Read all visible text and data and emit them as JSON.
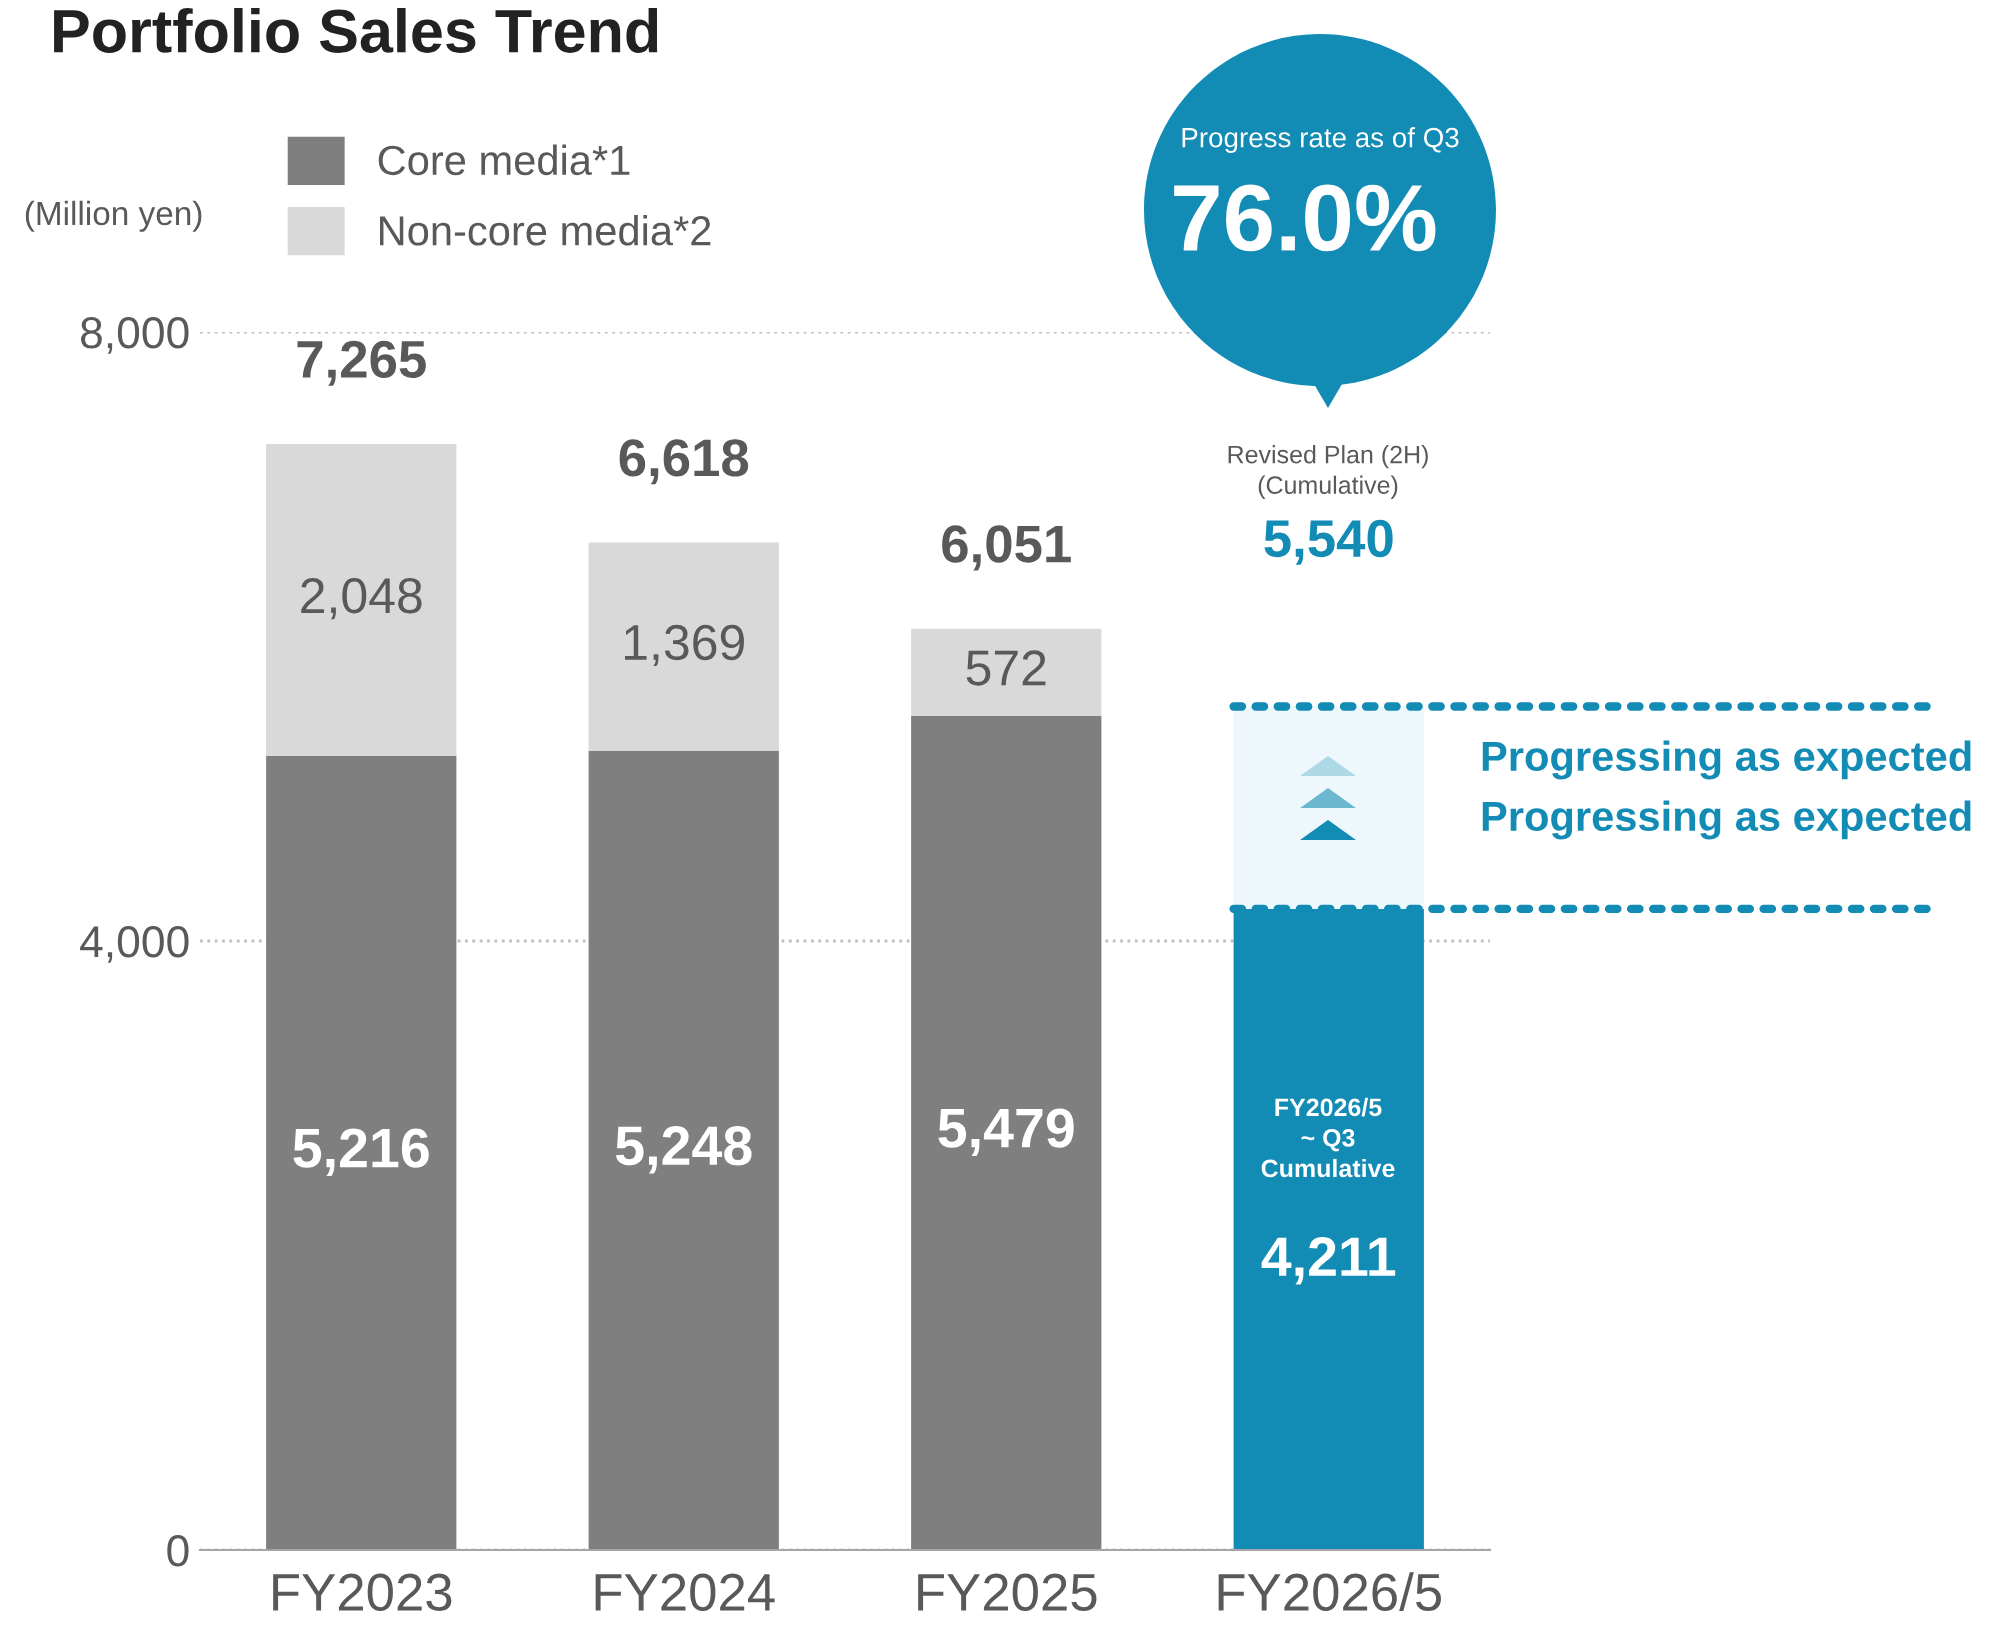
{
  "chart_data": {
    "type": "bar",
    "title": "Portfolio Sales Trend",
    "ylabel": "(Million yen)",
    "categories": [
      "FY2023",
      "FY2024",
      "FY2025",
      "FY2026/5"
    ],
    "stacked": true,
    "series": [
      {
        "name": "Core media*1",
        "color": "#7f7f7f",
        "values": [
          5216,
          5248,
          5479,
          null
        ],
        "value_labels": [
          "5,216",
          "5,248",
          "5,479",
          null
        ]
      },
      {
        "name": "Non-core media*2",
        "color": "#d9d9d9",
        "values": [
          2048,
          1369,
          572,
          null
        ],
        "value_labels": [
          "2,048",
          "1,369",
          "572",
          null
        ]
      },
      {
        "color": "#128bb5",
        "values": [
          null,
          null,
          null,
          4211
        ],
        "value_labels": [
          null,
          null,
          null,
          "4,211"
        ]
      }
    ],
    "totals": [
      "7,265",
      "6,618",
      "6,051",
      null
    ],
    "ylim": [
      0,
      8000
    ],
    "yticks": [
      {
        "value": 0,
        "label": "0"
      },
      {
        "value": 4000,
        "label": "4,000"
      },
      {
        "value": 8000,
        "label": "8,000"
      }
    ],
    "grid": "y",
    "legend": "top left",
    "ref_lines": [
      {
        "axis": "y",
        "value": 5540,
        "color": "#128bb5",
        "line_style": "dotted"
      },
      {
        "axis": "y",
        "value": 4211,
        "color": "#128bb5",
        "line_style": "dotted"
      }
    ],
    "bands": [
      {
        "axis": "y",
        "from": 4211,
        "to": 5540,
        "color": "#eef7fb"
      }
    ],
    "annotations": [
      "Progress rate as of Q3",
      "76.0%",
      "Revised Plan (2H)\n(Cumulative)",
      {
        "text": "5,540",
        "x": "FY2026/5",
        "y": 5540
      },
      "Progressing as expected",
      "Progressing as expected",
      "FY2026/5\n~ Q3\nCumulative"
    ]
  }
}
